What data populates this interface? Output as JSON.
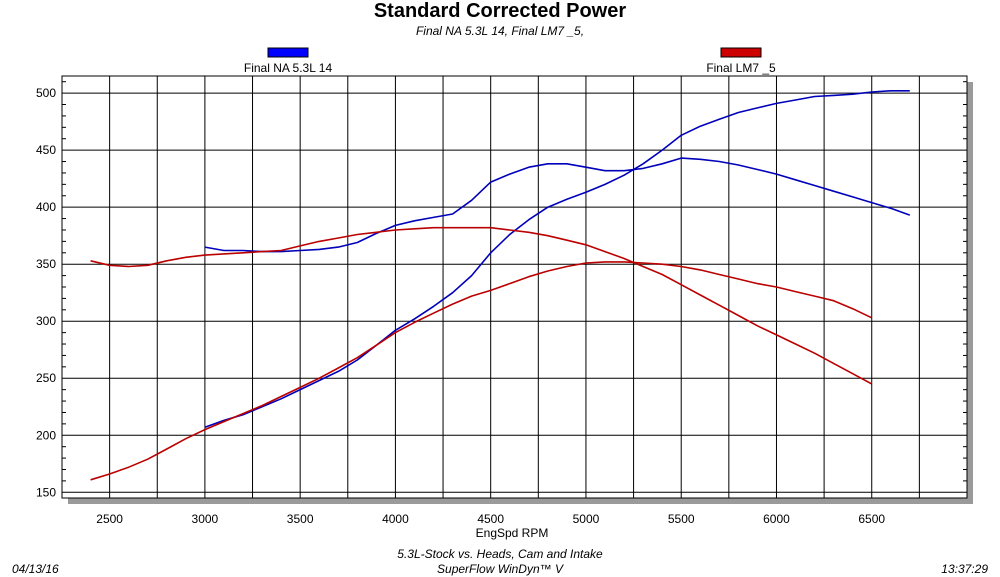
{
  "title": "Standard Corrected Power",
  "subtitle": "Final NA 5.3L 14, Final LM7 _5,",
  "footer": {
    "date": "04/13/16",
    "description": "5.3L-Stock vs. Heads, Cam and Intake",
    "software": "SuperFlow WinDyn™ V",
    "time": "13:37:29"
  },
  "chart_data": {
    "type": "line",
    "title": "Standard Corrected Power",
    "xlabel": "EngSpd RPM",
    "ylabel": "",
    "xlim": [
      2250,
      7000
    ],
    "ylim": [
      145,
      515
    ],
    "x_ticks": [
      2500,
      3000,
      3500,
      4000,
      4500,
      5000,
      5500,
      6000,
      6500
    ],
    "y_ticks": [
      150,
      200,
      250,
      300,
      350,
      400,
      450,
      500
    ],
    "grid": true,
    "legend_placement": "top",
    "series": [
      {
        "name": "Final NA 5.3L 14",
        "color": "#0000bb",
        "legend_color": "#0000ff",
        "lines": [
          {
            "x": [
              3000,
              3100,
              3200,
              3300,
              3400,
              3500,
              3600,
              3700,
              3800,
              3900,
              4000,
              4100,
              4200,
              4300,
              4400,
              4500,
              4600,
              4700,
              4800,
              4900,
              5000,
              5100,
              5200,
              5300,
              5400,
              5500,
              5600,
              5700,
              5800,
              5900,
              6000,
              6100,
              6200,
              6300,
              6400,
              6500,
              6600,
              6700
            ],
            "y": [
              207,
              213,
              218,
              225,
              232,
              240,
              248,
              256,
              266,
              279,
              292,
              302,
              313,
              325,
              340,
              360,
              376,
              389,
              400,
              407,
              413,
              420,
              428,
              438,
              450,
              463,
              471,
              477,
              483,
              487,
              491,
              494,
              497,
              498,
              499,
              501,
              502,
              502
            ]
          },
          {
            "x": [
              3000,
              3100,
              3200,
              3300,
              3400,
              3500,
              3600,
              3700,
              3800,
              3900,
              4000,
              4100,
              4200,
              4300,
              4400,
              4500,
              4600,
              4700,
              4800,
              4900,
              5000,
              5100,
              5200,
              5300,
              5400,
              5500,
              5600,
              5700,
              5800,
              5900,
              6000,
              6100,
              6200,
              6300,
              6400,
              6500,
              6600,
              6700
            ],
            "y": [
              365,
              362,
              362,
              361,
              361,
              362,
              363,
              365,
              369,
              377,
              384,
              388,
              391,
              394,
              406,
              422,
              429,
              435,
              438,
              438,
              435,
              432,
              432,
              434,
              438,
              443,
              442,
              440,
              437,
              433,
              429,
              424,
              419,
              414,
              409,
              404,
              399,
              393
            ]
          }
        ]
      },
      {
        "name": "Final LM7 _5",
        "color": "#bb0000",
        "legend_color": "#cc0000",
        "lines": [
          {
            "x": [
              2400,
              2500,
              2600,
              2700,
              2800,
              2900,
              3000,
              3100,
              3200,
              3300,
              3400,
              3500,
              3600,
              3700,
              3800,
              3900,
              4000,
              4100,
              4200,
              4300,
              4400,
              4500,
              4600,
              4700,
              4800,
              4900,
              5000,
              5100,
              5200,
              5300,
              5400,
              5500,
              5600,
              5700,
              5800,
              5900,
              6000,
              6100,
              6200,
              6300,
              6400,
              6500
            ],
            "y": [
              161,
              166,
              172,
              179,
              188,
              197,
              205,
              212,
              219,
              226,
              234,
              242,
              250,
              259,
              268,
              279,
              290,
              299,
              307,
              315,
              322,
              327,
              333,
              339,
              344,
              348,
              351,
              352,
              352,
              351,
              350,
              348,
              345,
              341,
              337,
              333,
              330,
              326,
              322,
              318,
              311,
              303
            ]
          },
          {
            "x": [
              2400,
              2500,
              2600,
              2700,
              2800,
              2900,
              3000,
              3100,
              3200,
              3300,
              3400,
              3500,
              3600,
              3700,
              3800,
              3900,
              4000,
              4100,
              4200,
              4300,
              4400,
              4500,
              4600,
              4700,
              4800,
              4900,
              5000,
              5100,
              5200,
              5300,
              5400,
              5500,
              5600,
              5700,
              5800,
              5900,
              6000,
              6100,
              6200,
              6300,
              6400,
              6500
            ],
            "y": [
              353,
              349,
              348,
              349,
              353,
              356,
              358,
              359,
              360,
              361,
              362,
              366,
              370,
              373,
              376,
              378,
              380,
              381,
              382,
              382,
              382,
              382,
              380,
              378,
              375,
              371,
              367,
              361,
              355,
              348,
              341,
              332,
              323,
              314,
              305,
              296,
              288,
              280,
              272,
              263,
              254,
              245
            ]
          }
        ]
      }
    ]
  }
}
